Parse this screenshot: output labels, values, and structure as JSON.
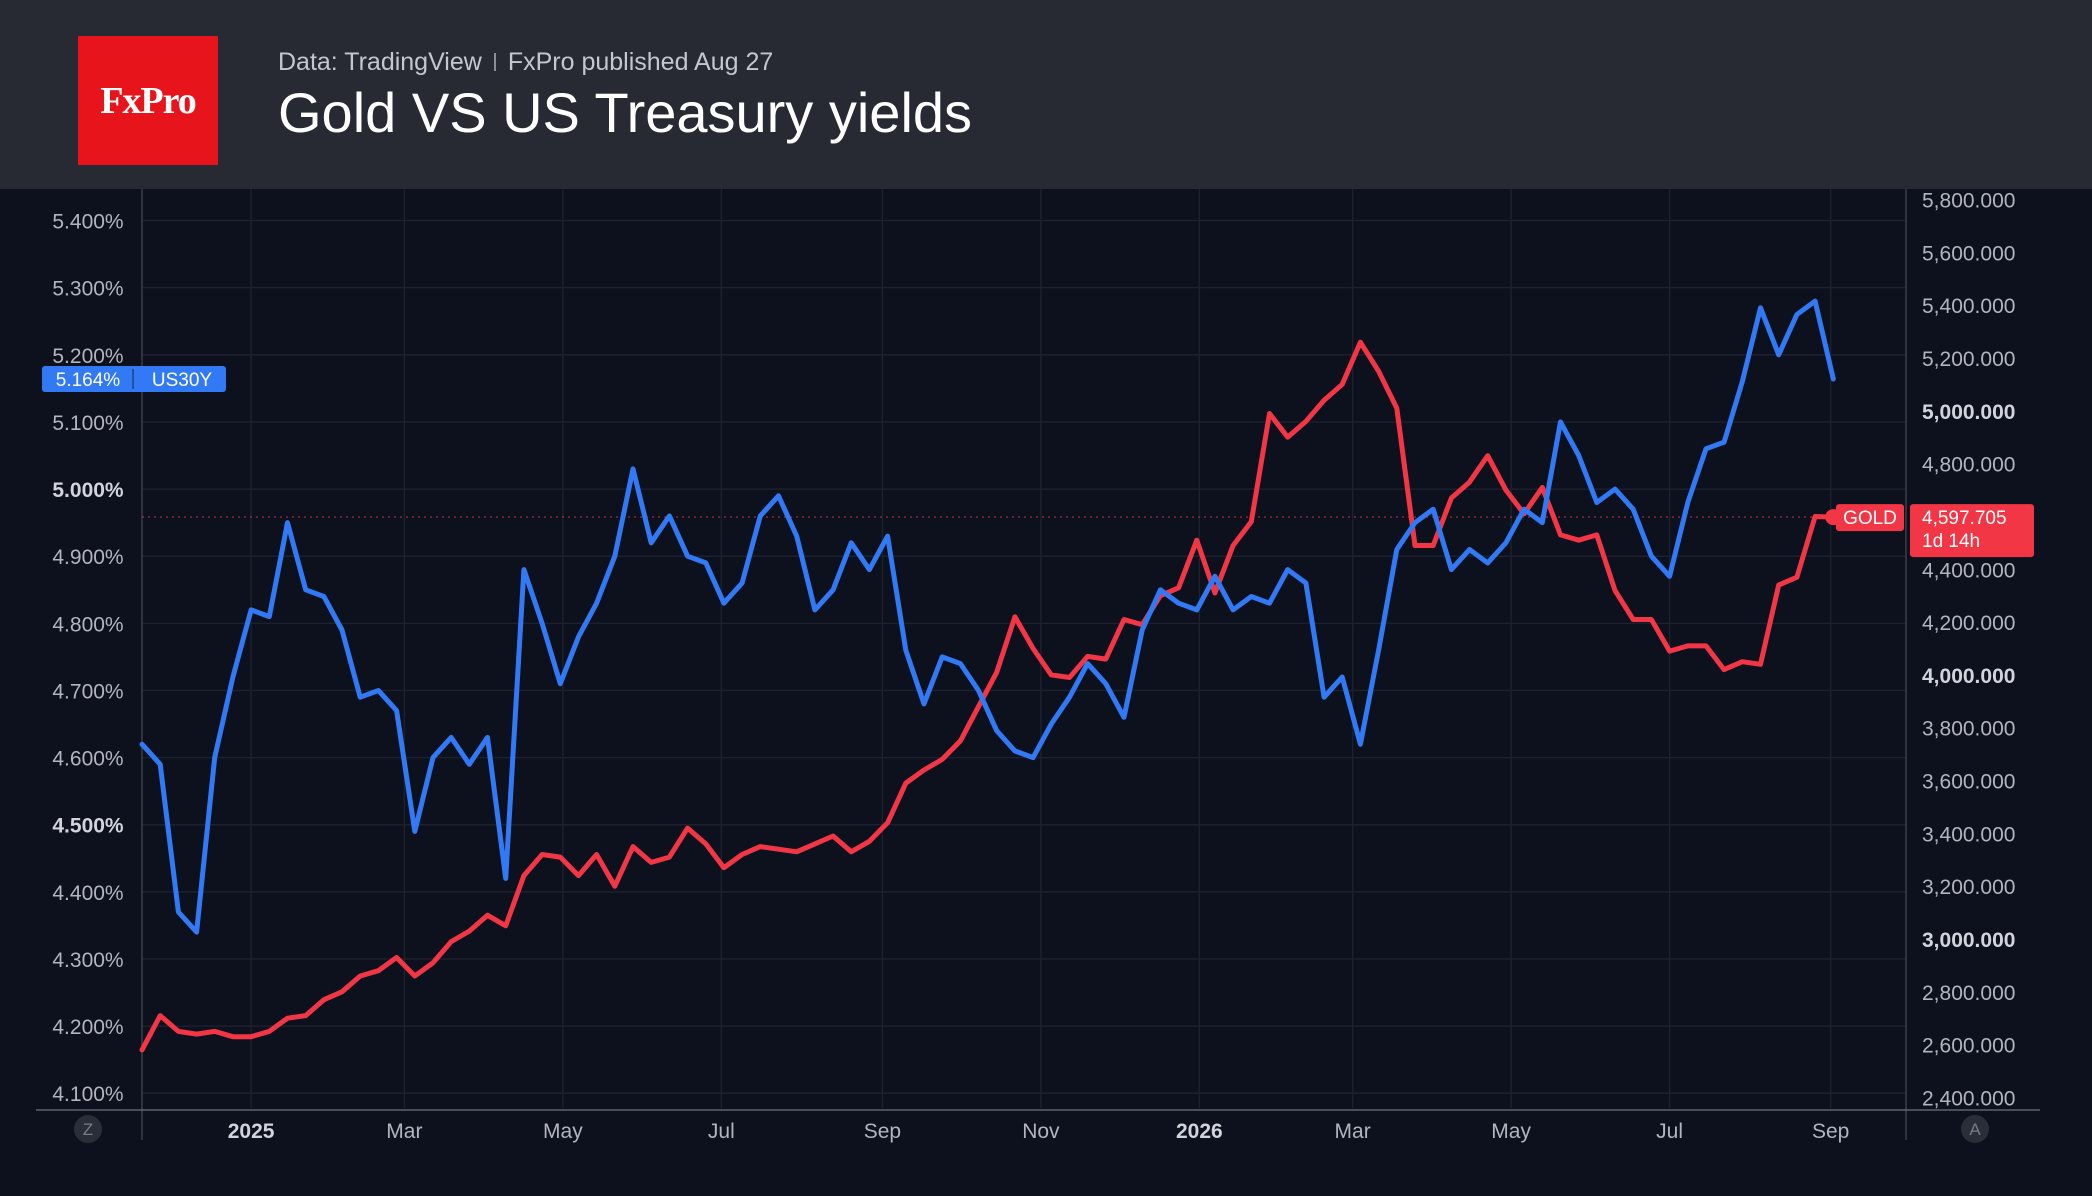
{
  "header": {
    "logo_text": "FxPro",
    "source": "Data: TradingView",
    "publisher": "FxPro published Aug 27",
    "title": "Gold VS US Treasury yields"
  },
  "controls": {
    "left_button": "Z",
    "right_button": "A"
  },
  "colors": {
    "background": "#0c111d",
    "header": "#272a33",
    "us30y": "#3179f5",
    "gold": "#f23645",
    "grid": "#1c212d",
    "axis_text": "#b2b5be"
  },
  "chart_data": {
    "type": "line",
    "x_axis": {
      "type": "date",
      "range": [
        "2024-11-20",
        "2026-09-30"
      ],
      "ticks": [
        {
          "date": "2025-01-01",
          "label": "2025",
          "bold": true
        },
        {
          "date": "2025-03-01",
          "label": "Mar"
        },
        {
          "date": "2025-05-01",
          "label": "May"
        },
        {
          "date": "2025-07-01",
          "label": "Jul"
        },
        {
          "date": "2025-09-01",
          "label": "Sep"
        },
        {
          "date": "2025-11-01",
          "label": "Nov"
        },
        {
          "date": "2026-01-01",
          "label": "2026",
          "bold": true
        },
        {
          "date": "2026-03-01",
          "label": "Mar"
        },
        {
          "date": "2026-05-01",
          "label": "May"
        },
        {
          "date": "2026-07-01",
          "label": "Jul"
        },
        {
          "date": "2026-09-01",
          "label": "Sep"
        }
      ]
    },
    "left_axis": {
      "unit": "%",
      "range": [
        4.078,
        5.447
      ],
      "ticks": [
        {
          "value": 4.1,
          "label": "4.100%"
        },
        {
          "value": 4.2,
          "label": "4.200%"
        },
        {
          "value": 4.3,
          "label": "4.300%"
        },
        {
          "value": 4.4,
          "label": "4.400%"
        },
        {
          "value": 4.5,
          "label": "4.500%",
          "bold": true
        },
        {
          "value": 4.6,
          "label": "4.600%"
        },
        {
          "value": 4.7,
          "label": "4.700%"
        },
        {
          "value": 4.8,
          "label": "4.800%"
        },
        {
          "value": 4.9,
          "label": "4.900%"
        },
        {
          "value": 5.0,
          "label": "5.000%",
          "bold": true
        },
        {
          "value": 5.1,
          "label": "5.100%"
        },
        {
          "value": 5.2,
          "label": "5.200%"
        },
        {
          "value": 5.3,
          "label": "5.300%"
        },
        {
          "value": 5.4,
          "label": "5.400%"
        }
      ]
    },
    "right_axis": {
      "range": [
        2360,
        5840
      ],
      "ticks": [
        {
          "value": 2400,
          "label": "2,400.000"
        },
        {
          "value": 2600,
          "label": "2,600.000"
        },
        {
          "value": 2800,
          "label": "2,800.000"
        },
        {
          "value": 3000,
          "label": "3,000.000",
          "bold": true
        },
        {
          "value": 3200,
          "label": "3,200.000"
        },
        {
          "value": 3400,
          "label": "3,400.000"
        },
        {
          "value": 3600,
          "label": "3,600.000"
        },
        {
          "value": 3800,
          "label": "3,800.000"
        },
        {
          "value": 4000,
          "label": "4,000.000",
          "bold": true
        },
        {
          "value": 4200,
          "label": "4,200.000"
        },
        {
          "value": 4400,
          "label": "4,400.000"
        },
        {
          "value": 4600,
          "label": "4,600.000"
        },
        {
          "value": 4800,
          "label": "4,800.000"
        },
        {
          "value": 5000,
          "label": "5,000.000",
          "bold": true
        },
        {
          "value": 5200,
          "label": "5,200.000"
        },
        {
          "value": 5400,
          "label": "5,400.000"
        },
        {
          "value": 5600,
          "label": "5,600.000"
        },
        {
          "value": 5800,
          "label": "5,800.000"
        }
      ]
    },
    "series": [
      {
        "name": "US30Y",
        "axis": "left",
        "color": "#3179f5",
        "last_value_label": "5.164%",
        "points": [
          [
            "2024-11-20",
            4.62
          ],
          [
            "2024-11-27",
            4.59
          ],
          [
            "2024-12-04",
            4.37
          ],
          [
            "2024-12-11",
            4.34
          ],
          [
            "2024-12-18",
            4.6
          ],
          [
            "2024-12-25",
            4.72
          ],
          [
            "2025-01-01",
            4.82
          ],
          [
            "2025-01-08",
            4.81
          ],
          [
            "2025-01-15",
            4.95
          ],
          [
            "2025-01-22",
            4.85
          ],
          [
            "2025-01-29",
            4.84
          ],
          [
            "2025-02-05",
            4.79
          ],
          [
            "2025-02-12",
            4.69
          ],
          [
            "2025-02-19",
            4.7
          ],
          [
            "2025-02-26",
            4.67
          ],
          [
            "2025-03-05",
            4.49
          ],
          [
            "2025-03-12",
            4.6
          ],
          [
            "2025-03-19",
            4.63
          ],
          [
            "2025-03-26",
            4.59
          ],
          [
            "2025-04-02",
            4.63
          ],
          [
            "2025-04-09",
            4.42
          ],
          [
            "2025-04-16",
            4.88
          ],
          [
            "2025-04-23",
            4.8
          ],
          [
            "2025-04-30",
            4.71
          ],
          [
            "2025-05-07",
            4.78
          ],
          [
            "2025-05-14",
            4.83
          ],
          [
            "2025-05-21",
            4.9
          ],
          [
            "2025-05-28",
            5.03
          ],
          [
            "2025-06-04",
            4.92
          ],
          [
            "2025-06-11",
            4.96
          ],
          [
            "2025-06-18",
            4.9
          ],
          [
            "2025-06-25",
            4.89
          ],
          [
            "2025-07-02",
            4.83
          ],
          [
            "2025-07-09",
            4.86
          ],
          [
            "2025-07-16",
            4.96
          ],
          [
            "2025-07-23",
            4.99
          ],
          [
            "2025-07-30",
            4.93
          ],
          [
            "2025-08-06",
            4.82
          ],
          [
            "2025-08-13",
            4.85
          ],
          [
            "2025-08-20",
            4.92
          ],
          [
            "2025-08-27",
            4.88
          ],
          [
            "2025-09-03",
            4.93
          ],
          [
            "2025-09-10",
            4.76
          ],
          [
            "2025-09-17",
            4.68
          ],
          [
            "2025-09-24",
            4.75
          ],
          [
            "2025-10-01",
            4.74
          ],
          [
            "2025-10-08",
            4.7
          ],
          [
            "2025-10-15",
            4.64
          ],
          [
            "2025-10-22",
            4.61
          ],
          [
            "2025-10-29",
            4.6
          ],
          [
            "2025-11-05",
            4.65
          ],
          [
            "2025-11-12",
            4.69
          ],
          [
            "2025-11-19",
            4.74
          ],
          [
            "2025-11-26",
            4.71
          ],
          [
            "2025-12-03",
            4.66
          ],
          [
            "2025-12-10",
            4.79
          ],
          [
            "2025-12-17",
            4.85
          ],
          [
            "2025-12-24",
            4.83
          ],
          [
            "2025-12-31",
            4.82
          ],
          [
            "2026-01-07",
            4.87
          ],
          [
            "2026-01-14",
            4.82
          ],
          [
            "2026-01-21",
            4.84
          ],
          [
            "2026-01-28",
            4.83
          ],
          [
            "2026-02-04",
            4.88
          ],
          [
            "2026-02-11",
            4.86
          ],
          [
            "2026-02-18",
            4.69
          ],
          [
            "2026-02-25",
            4.72
          ],
          [
            "2026-03-04",
            4.62
          ],
          [
            "2026-03-11",
            4.76
          ],
          [
            "2026-03-18",
            4.91
          ],
          [
            "2026-03-25",
            4.95
          ],
          [
            "2026-04-01",
            4.97
          ],
          [
            "2026-04-08",
            4.88
          ],
          [
            "2026-04-15",
            4.91
          ],
          [
            "2026-04-22",
            4.89
          ],
          [
            "2026-04-29",
            4.92
          ],
          [
            "2026-05-06",
            4.97
          ],
          [
            "2026-05-13",
            4.95
          ],
          [
            "2026-05-20",
            5.1
          ],
          [
            "2026-05-27",
            5.05
          ],
          [
            "2026-06-03",
            4.98
          ],
          [
            "2026-06-10",
            5.0
          ],
          [
            "2026-06-17",
            4.97
          ],
          [
            "2026-06-24",
            4.9
          ],
          [
            "2026-07-01",
            4.87
          ],
          [
            "2026-07-08",
            4.98
          ],
          [
            "2026-07-15",
            5.06
          ],
          [
            "2026-07-22",
            5.07
          ],
          [
            "2026-07-29",
            5.16
          ],
          [
            "2026-08-05",
            5.27
          ],
          [
            "2026-08-12",
            5.2
          ],
          [
            "2026-08-19",
            5.26
          ],
          [
            "2026-08-26",
            5.28
          ],
          [
            "2026-09-02",
            5.164
          ]
        ]
      },
      {
        "name": "GOLD",
        "axis": "right",
        "color": "#f23645",
        "last_value_label": "4,597.705",
        "countdown_label": "1d 14h",
        "points": [
          [
            "2024-11-20",
            2580
          ],
          [
            "2024-11-27",
            2710
          ],
          [
            "2024-12-04",
            2650
          ],
          [
            "2024-12-11",
            2640
          ],
          [
            "2024-12-18",
            2650
          ],
          [
            "2024-12-25",
            2630
          ],
          [
            "2025-01-01",
            2630
          ],
          [
            "2025-01-08",
            2650
          ],
          [
            "2025-01-15",
            2700
          ],
          [
            "2025-01-22",
            2710
          ],
          [
            "2025-01-29",
            2770
          ],
          [
            "2025-02-05",
            2800
          ],
          [
            "2025-02-12",
            2860
          ],
          [
            "2025-02-19",
            2880
          ],
          [
            "2025-02-26",
            2930
          ],
          [
            "2025-03-05",
            2860
          ],
          [
            "2025-03-12",
            2910
          ],
          [
            "2025-03-19",
            2990
          ],
          [
            "2025-03-26",
            3030
          ],
          [
            "2025-04-02",
            3090
          ],
          [
            "2025-04-09",
            3050
          ],
          [
            "2025-04-16",
            3240
          ],
          [
            "2025-04-23",
            3320
          ],
          [
            "2025-04-30",
            3310
          ],
          [
            "2025-05-07",
            3240
          ],
          [
            "2025-05-14",
            3320
          ],
          [
            "2025-05-21",
            3200
          ],
          [
            "2025-05-28",
            3350
          ],
          [
            "2025-06-04",
            3290
          ],
          [
            "2025-06-11",
            3310
          ],
          [
            "2025-06-18",
            3420
          ],
          [
            "2025-06-25",
            3360
          ],
          [
            "2025-07-02",
            3270
          ],
          [
            "2025-07-09",
            3320
          ],
          [
            "2025-07-16",
            3350
          ],
          [
            "2025-07-23",
            3340
          ],
          [
            "2025-07-30",
            3330
          ],
          [
            "2025-08-06",
            3360
          ],
          [
            "2025-08-13",
            3390
          ],
          [
            "2025-08-20",
            3330
          ],
          [
            "2025-08-27",
            3370
          ],
          [
            "2025-09-03",
            3440
          ],
          [
            "2025-09-10",
            3590
          ],
          [
            "2025-09-17",
            3640
          ],
          [
            "2025-09-24",
            3680
          ],
          [
            "2025-10-01",
            3750
          ],
          [
            "2025-10-08",
            3880
          ],
          [
            "2025-10-15",
            4010
          ],
          [
            "2025-10-22",
            4220
          ],
          [
            "2025-10-29",
            4100
          ],
          [
            "2025-11-05",
            4000
          ],
          [
            "2025-11-12",
            3990
          ],
          [
            "2025-11-19",
            4070
          ],
          [
            "2025-11-26",
            4060
          ],
          [
            "2025-12-03",
            4210
          ],
          [
            "2025-12-10",
            4190
          ],
          [
            "2025-12-17",
            4300
          ],
          [
            "2025-12-24",
            4330
          ],
          [
            "2025-12-31",
            4510
          ],
          [
            "2026-01-07",
            4310
          ],
          [
            "2026-01-14",
            4490
          ],
          [
            "2026-01-21",
            4580
          ],
          [
            "2026-01-28",
            4990
          ],
          [
            "2026-02-04",
            4900
          ],
          [
            "2026-02-11",
            4960
          ],
          [
            "2026-02-18",
            5040
          ],
          [
            "2026-02-25",
            5100
          ],
          [
            "2026-03-04",
            5260
          ],
          [
            "2026-03-11",
            5150
          ],
          [
            "2026-03-18",
            5010
          ],
          [
            "2026-03-25",
            4490
          ],
          [
            "2026-04-01",
            4490
          ],
          [
            "2026-04-08",
            4670
          ],
          [
            "2026-04-15",
            4730
          ],
          [
            "2026-04-22",
            4830
          ],
          [
            "2026-04-29",
            4700
          ],
          [
            "2026-05-06",
            4610
          ],
          [
            "2026-05-13",
            4710
          ],
          [
            "2026-05-20",
            4530
          ],
          [
            "2026-05-27",
            4510
          ],
          [
            "2026-06-03",
            4530
          ],
          [
            "2026-06-10",
            4320
          ],
          [
            "2026-06-17",
            4210
          ],
          [
            "2026-06-24",
            4210
          ],
          [
            "2026-07-01",
            4090
          ],
          [
            "2026-07-08",
            4110
          ],
          [
            "2026-07-15",
            4110
          ],
          [
            "2026-07-22",
            4020
          ],
          [
            "2026-07-29",
            4050
          ],
          [
            "2026-08-05",
            4040
          ],
          [
            "2026-08-12",
            4340
          ],
          [
            "2026-08-19",
            4370
          ],
          [
            "2026-08-26",
            4600
          ],
          [
            "2026-09-02",
            4597.705
          ]
        ]
      }
    ]
  }
}
